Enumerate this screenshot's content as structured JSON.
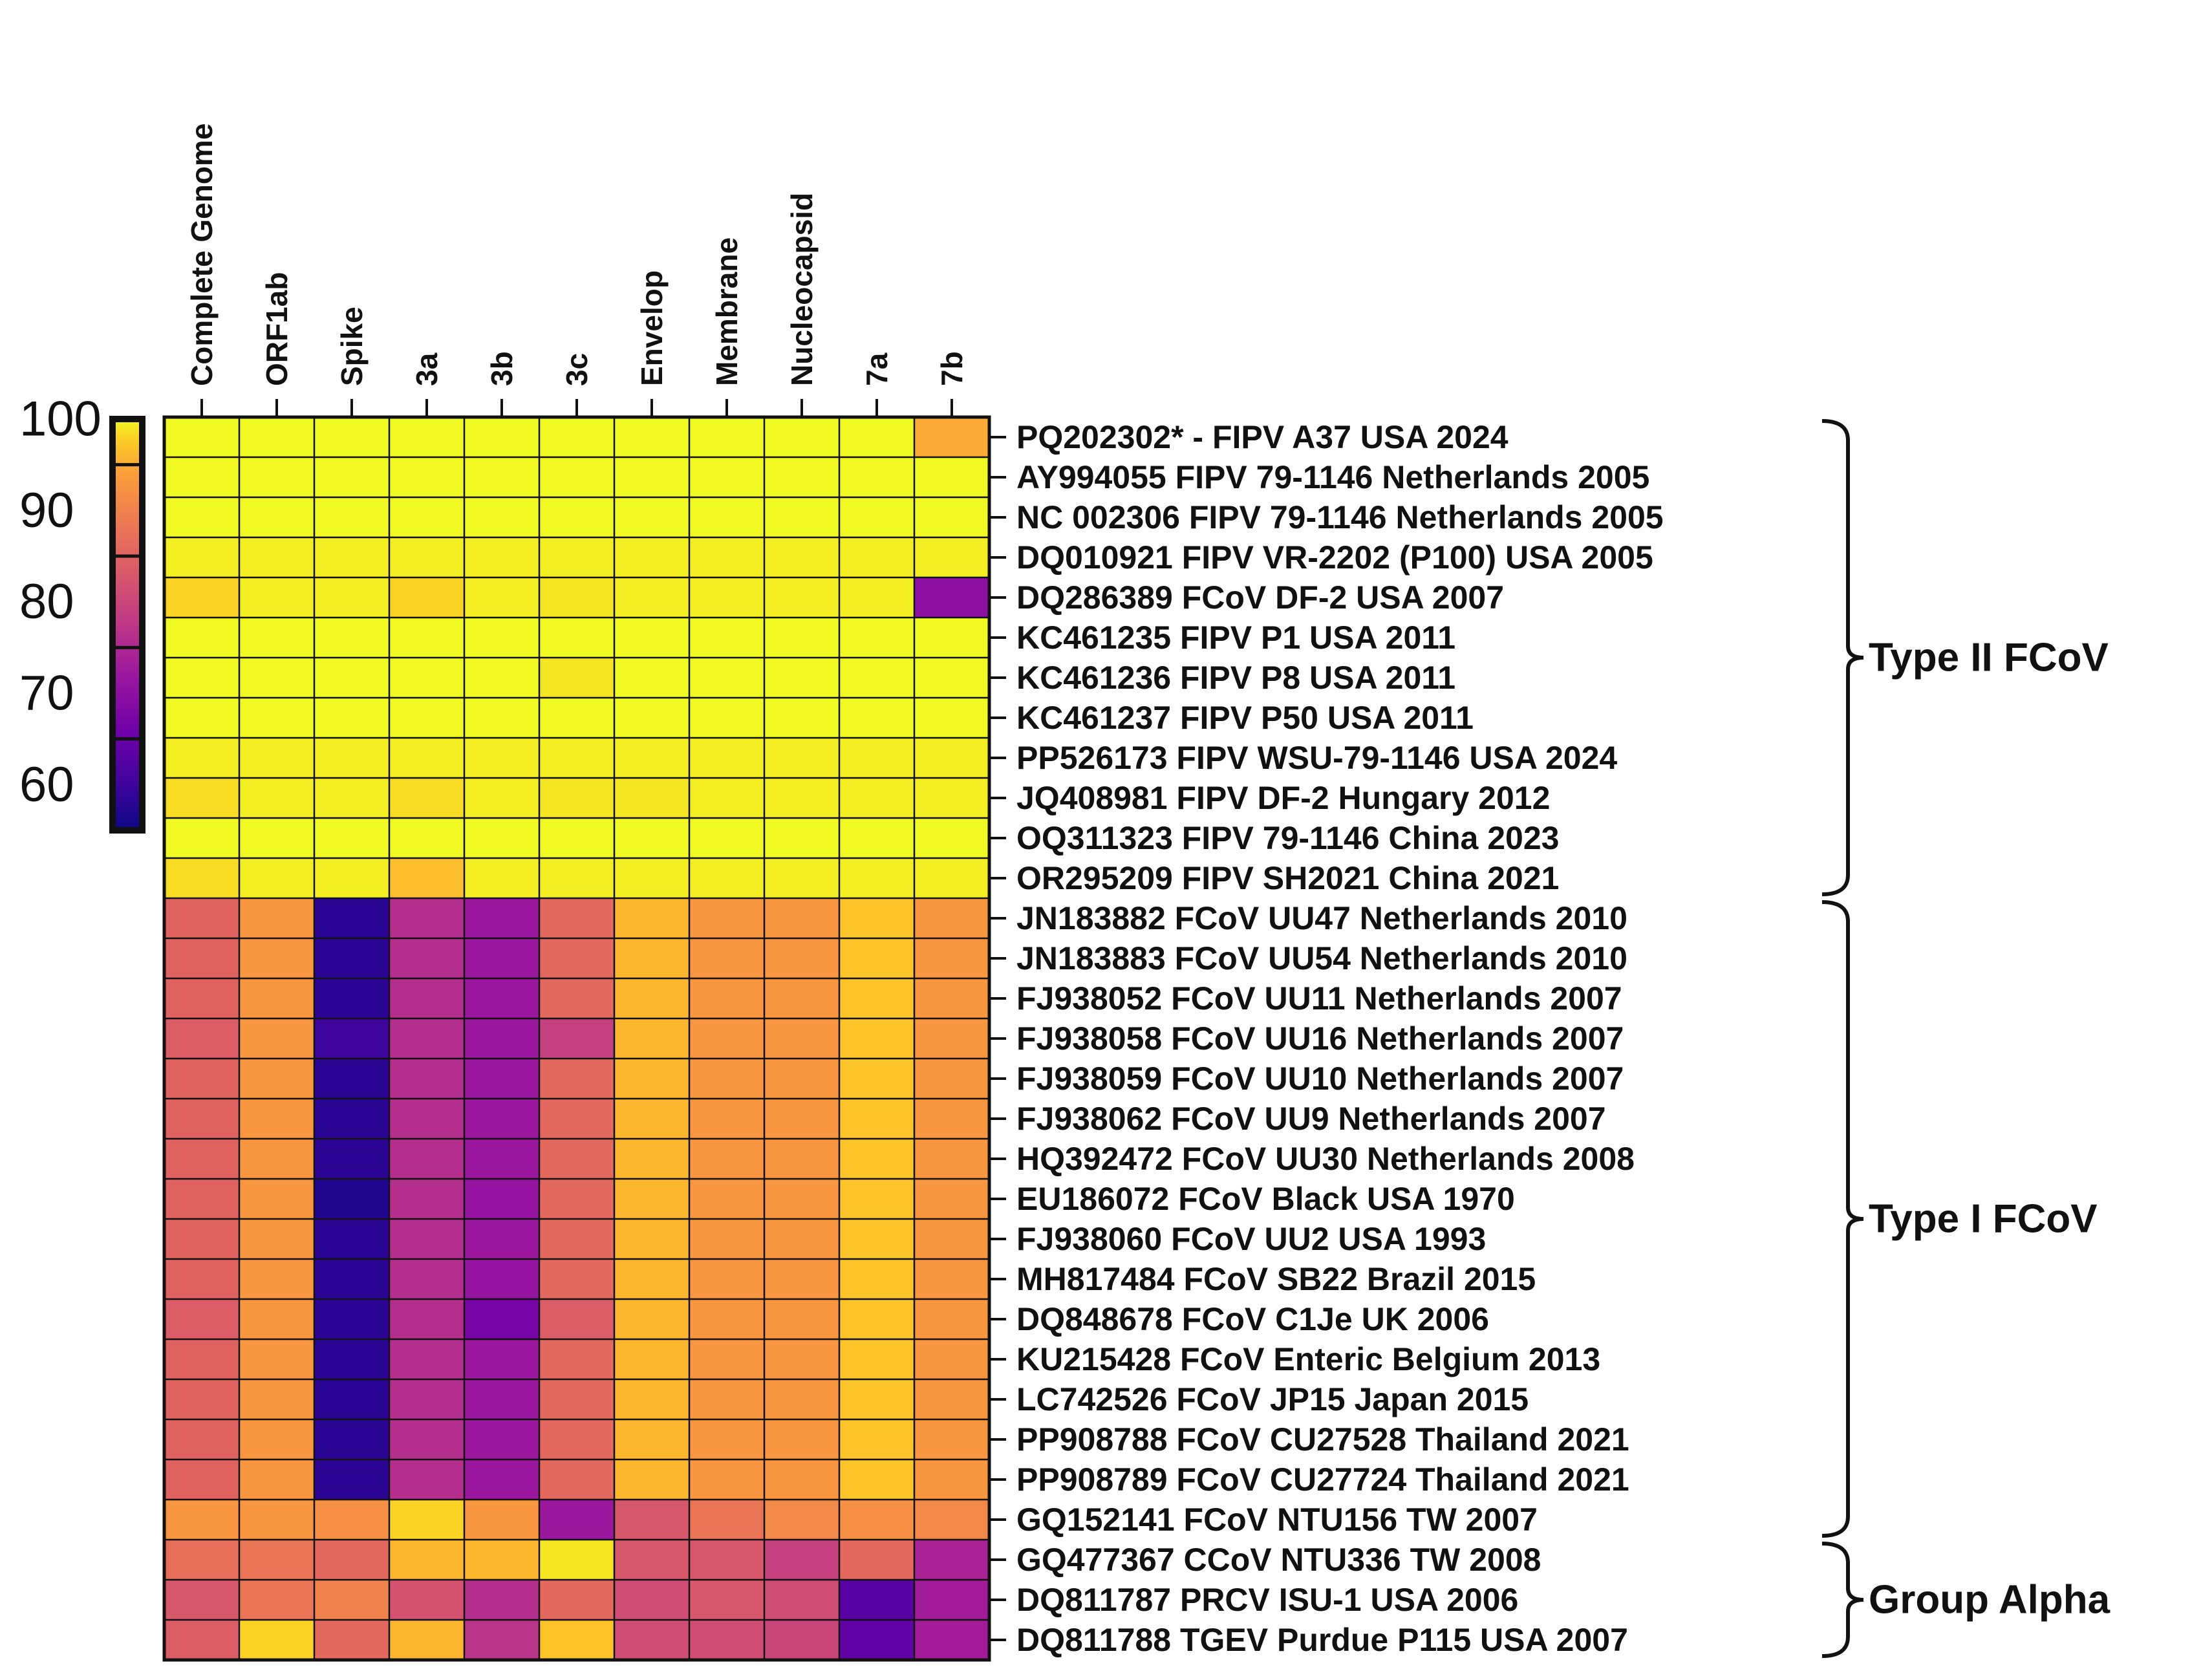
{
  "chart_data": {
    "type": "heatmap",
    "title": "",
    "columns": [
      "Complete Genome",
      "ORF1ab",
      "Spike",
      "3a",
      "3b",
      "3c",
      "Envelop",
      "Membrane",
      "Nucleocapsid",
      "7a",
      "7b"
    ],
    "rows": [
      "PQ202302* - FIPV A37 USA 2024",
      "AY994055 FIPV 79-1146 Netherlands 2005",
      "NC 002306 FIPV 79-1146 Netherlands 2005",
      "DQ010921 FIPV VR-2202 (P100) USA 2005",
      "DQ286389 FCoV DF-2 USA 2007",
      "KC461235 FIPV P1 USA 2011",
      "KC461236 FIPV P8 USA 2011",
      "KC461237 FIPV P50 USA 2011",
      "PP526173 FIPV WSU-79-1146 USA 2024",
      "JQ408981 FIPV DF-2 Hungary 2012",
      "OQ311323 FIPV 79-1146 China 2023",
      "OR295209 FIPV SH2021 China 2021",
      "JN183882 FCoV UU47 Netherlands 2010",
      "JN183883 FCoV UU54 Netherlands 2010",
      "FJ938052 FCoV UU11 Netherlands 2007",
      "FJ938058 FCoV UU16 Netherlands 2007",
      "FJ938059 FCoV UU10 Netherlands 2007",
      "FJ938062 FCoV UU9 Netherlands 2007",
      "HQ392472 FCoV UU30 Netherlands 2008",
      "EU186072 FCoV Black USA 1970",
      "FJ938060 FCoV UU2 USA 1993",
      "MH817484 FCoV SB22 Brazil 2015",
      "DQ848678 FCoV C1Je UK 2006",
      "KU215428 FCoV Enteric Belgium 2013",
      "LC742526 FCoV JP15 Japan 2015",
      "PP908788 FCoV CU27528 Thailand 2021",
      "PP908789 FCoV CU27724 Thailand 2021",
      "GQ152141 FCoV NTU156 TW 2007",
      "GQ477367 CCoV NTU336 TW 2008",
      "DQ811787 PRCV ISU-1 USA 2006",
      "DQ811788 TGEV Purdue P115 USA 2007"
    ],
    "values": [
      [
        100,
        100,
        100,
        100,
        100,
        100,
        100,
        100,
        100,
        100,
        95
      ],
      [
        100,
        100,
        100,
        100,
        100,
        100,
        100,
        100,
        100,
        100,
        100
      ],
      [
        100,
        100,
        100,
        100,
        100,
        100,
        100,
        100,
        100,
        100,
        100
      ],
      [
        99.5,
        99.5,
        99.5,
        99.5,
        99.5,
        99.5,
        99.5,
        99.5,
        99.5,
        99.5,
        99.5
      ],
      [
        98,
        99.5,
        99.5,
        98,
        99.5,
        99,
        99.5,
        99.5,
        99.5,
        99.5,
        70
      ],
      [
        100,
        100,
        100,
        100,
        100,
        100,
        100,
        100,
        100,
        100,
        100
      ],
      [
        100,
        100,
        100,
        100,
        100,
        99,
        100,
        100,
        100,
        100,
        100
      ],
      [
        100,
        100,
        100,
        100,
        100,
        100,
        100,
        100,
        100,
        100,
        100
      ],
      [
        99.5,
        99.5,
        99.5,
        99.5,
        99.5,
        99.5,
        99.5,
        99.5,
        99.5,
        99.5,
        99.5
      ],
      [
        98.5,
        99.5,
        99.5,
        98.5,
        99.5,
        99,
        99,
        99.5,
        99.5,
        99.5,
        99.5
      ],
      [
        100,
        100,
        100,
        100,
        100,
        100,
        100,
        100,
        100,
        100,
        100
      ],
      [
        98.5,
        99.5,
        99.5,
        96.5,
        99.5,
        99.5,
        99.5,
        99.5,
        99.5,
        99.5,
        99.5
      ],
      [
        85,
        93,
        58,
        76,
        72,
        86,
        96,
        93,
        93,
        97,
        93
      ],
      [
        85,
        93,
        58,
        76,
        72,
        86,
        96,
        93,
        93,
        97,
        93
      ],
      [
        85,
        93,
        58,
        76,
        72,
        86,
        96,
        93,
        93,
        97,
        93
      ],
      [
        84,
        93,
        60,
        76,
        72,
        79,
        96,
        93,
        93,
        97,
        93
      ],
      [
        85,
        93,
        58,
        76,
        72,
        86,
        96,
        93,
        93,
        97,
        93
      ],
      [
        85,
        93,
        58,
        76,
        72,
        86,
        96,
        93,
        93,
        97,
        93
      ],
      [
        85,
        93,
        58,
        76,
        72,
        86,
        96,
        93,
        93,
        97,
        93
      ],
      [
        85,
        93,
        57,
        76,
        71,
        86,
        96,
        93,
        93,
        97,
        93
      ],
      [
        85,
        93,
        58,
        76,
        72,
        86,
        96,
        93,
        93,
        97,
        93
      ],
      [
        85,
        93,
        58,
        76,
        71,
        86,
        96,
        93,
        93,
        97,
        93
      ],
      [
        84,
        93,
        58,
        76,
        67,
        84,
        96,
        93,
        93,
        97,
        93
      ],
      [
        85,
        93,
        58,
        76,
        72,
        86,
        96,
        93,
        93,
        97,
        93
      ],
      [
        85,
        93,
        58,
        76,
        72,
        86,
        96,
        93,
        93,
        97,
        93
      ],
      [
        85,
        93,
        58,
        76,
        72,
        86,
        96,
        93,
        93,
        97,
        93
      ],
      [
        85,
        93,
        58,
        76,
        72,
        86,
        96,
        93,
        93,
        97,
        93
      ],
      [
        93,
        93,
        92,
        98,
        93,
        72,
        83,
        88,
        91,
        92,
        91
      ],
      [
        87,
        88,
        86,
        96,
        96,
        99,
        83,
        83,
        79,
        86,
        74
      ],
      [
        83,
        88,
        90,
        82,
        76,
        86,
        81,
        83,
        81,
        63,
        73
      ],
      [
        84,
        98,
        86,
        96,
        77,
        97,
        81,
        81,
        80,
        64,
        73
      ]
    ],
    "groups": [
      {
        "name": "Type II FCoV",
        "first_row": 0,
        "last_row": 11
      },
      {
        "name": "Type I FCoV",
        "first_row": 12,
        "last_row": 27
      },
      {
        "name": "Group Alpha",
        "first_row": 28,
        "last_row": 30
      }
    ],
    "colorbar": {
      "ticks": [
        100,
        90,
        80,
        70,
        60
      ],
      "range": [
        55,
        100
      ],
      "colormap": "plasma"
    }
  }
}
